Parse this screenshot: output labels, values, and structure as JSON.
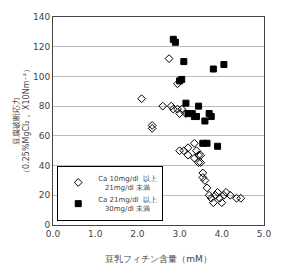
{
  "chart_data": {
    "type": "scatter",
    "xlabel": "豆乳フィチン含量（mM）",
    "ylabel": "豆腐破断応力\n（0.25%MgCl₂， X10Nm⁻²）",
    "xlim": [
      0.0,
      5.0
    ],
    "ylim": [
      0,
      140
    ],
    "xticks": [
      {
        "value": 0.0,
        "label": "0.0"
      },
      {
        "value": 1.0,
        "label": "1.0"
      },
      {
        "value": 2.0,
        "label": "2.0"
      },
      {
        "value": 3.0,
        "label": "3.0"
      },
      {
        "value": 4.0,
        "label": "4.0"
      },
      {
        "value": 5.0,
        "label": "5.0"
      }
    ],
    "yticks": [
      0,
      20,
      40,
      60,
      80,
      100,
      120,
      140
    ],
    "grid": "y",
    "legend": "lower left",
    "series": [
      {
        "name": "Ca 10mg/dl  以上\n   21mg/dl 未満",
        "color": "#000000",
        "marker": "diamond-open",
        "x": [
          2.1,
          2.35,
          2.35,
          2.6,
          2.75,
          2.8,
          2.85,
          2.95,
          2.95,
          3.0,
          3.0,
          3.05,
          3.1,
          3.15,
          3.2,
          3.2,
          3.35,
          3.35,
          3.4,
          3.45,
          3.45,
          3.5,
          3.5,
          3.55,
          3.55,
          3.6,
          3.65,
          3.7,
          3.75,
          3.8,
          3.85,
          3.9,
          3.95,
          4.0,
          4.05,
          4.1,
          4.2,
          4.35,
          4.45
        ],
        "values": [
          85,
          67,
          65,
          80,
          112,
          80,
          78,
          95,
          78,
          75,
          50,
          78,
          50,
          75,
          52,
          47,
          55,
          45,
          50,
          47,
          42,
          47,
          42,
          35,
          32,
          30,
          25,
          20,
          18,
          15,
          20,
          22,
          18,
          15,
          20,
          22,
          20,
          18,
          18
        ]
      },
      {
        "name": "Ca 21mg/dl  以上\n   30mg/dl 未満",
        "color": "#000000",
        "marker": "square",
        "x": [
          2.85,
          2.9,
          3.0,
          3.05,
          3.1,
          3.15,
          3.2,
          3.3,
          3.35,
          3.4,
          3.45,
          3.55,
          3.6,
          3.65,
          3.7,
          3.75,
          3.8,
          3.9,
          4.05
        ],
        "values": [
          125,
          123,
          97,
          98,
          110,
          82,
          75,
          75,
          73,
          73,
          80,
          55,
          70,
          55,
          75,
          73,
          105,
          53,
          108
        ]
      }
    ]
  }
}
